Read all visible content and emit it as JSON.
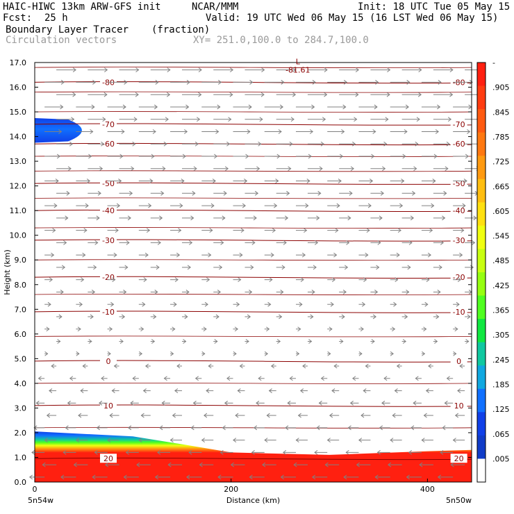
{
  "header": {
    "model": "HAIC-HIWC 13km ARW-GFS init",
    "org": "NCAR/MMM",
    "init": "Init: 18 UTC Tue 05 May 15",
    "fcst_label": "Fcst:",
    "fcst_value": "25 h",
    "valid": "Valid: 19 UTC Wed 06 May 15 (16 LST Wed 06 May 15)",
    "field1_name": "Boundary Layer Tracer",
    "field1_unit": "(fraction)",
    "field2_name": "Circulation vectors",
    "xy": "XY= 251.0,100.0 to 284.7,100.0"
  },
  "chart_data": {
    "type": "heatmap",
    "title": "Boundary Layer Tracer (fraction)",
    "xlabel": "Distance (km)",
    "ylabel": "Height (km)",
    "xlim": [
      0,
      445
    ],
    "ylim": [
      0.0,
      17.0
    ],
    "x_ticks": [
      "0",
      "200",
      "400"
    ],
    "x_tick_values": [
      0,
      200,
      400
    ],
    "x_end_labels": [
      "5n54w",
      "5n50w"
    ],
    "y_ticks": [
      "0.0",
      "1.0",
      "2.0",
      "3.0",
      "4.0",
      "5.0",
      "6.0",
      "7.0",
      "8.0",
      "9.0",
      "10.0",
      "11.0",
      "12.0",
      "13.0",
      "14.0",
      "15.0",
      "16.0",
      "17.0"
    ],
    "colorbar": {
      "labels": [
        "-",
        ".905",
        ".845",
        ".785",
        ".725",
        ".665",
        ".605",
        ".545",
        ".485",
        ".425",
        ".365",
        ".305",
        ".245",
        ".185",
        ".125",
        ".065",
        ".005"
      ],
      "colors": [
        "#ff2010",
        "#ff3c10",
        "#ff5a10",
        "#ff7810",
        "#ff9a10",
        "#ffbe10",
        "#ffe010",
        "#f0ff10",
        "#c8ff10",
        "#96ff10",
        "#50ff20",
        "#10e840",
        "#10c8a0",
        "#10a8e0",
        "#1070ff",
        "#1040e8",
        "#103cc8",
        "#ffffff"
      ]
    },
    "boundary_layer_top_km": [
      {
        "x": 0,
        "y": 2.05
      },
      {
        "x": 100,
        "y": 1.85
      },
      {
        "x": 155,
        "y": 1.5
      },
      {
        "x": 200,
        "y": 1.2
      },
      {
        "x": 300,
        "y": 1.1
      },
      {
        "x": 400,
        "y": 1.25
      },
      {
        "x": 445,
        "y": 1.3
      }
    ],
    "upper_plume": {
      "x_start": 0,
      "x_end": 62,
      "y_center": 14.25,
      "half_depth": 0.5
    },
    "isotherms": [
      {
        "label": "-80",
        "y": 16.2
      },
      {
        "label": "-70",
        "y": 14.5
      },
      {
        "label": "-60",
        "y": 13.7
      },
      {
        "label": "-50",
        "y": 12.1
      },
      {
        "label": "-40",
        "y": 11.0
      },
      {
        "label": "-30",
        "y": 9.8
      },
      {
        "label": "-20",
        "y": 8.3
      },
      {
        "label": "-10",
        "y": 6.9
      },
      {
        "label": "0",
        "y": 4.9
      },
      {
        "label": "10",
        "y": 3.1
      },
      {
        "label": "20",
        "y": 0.95
      }
    ],
    "low_marker": {
      "symbol": "L",
      "value": "-81.61",
      "x": 268,
      "y": 16.7
    },
    "vectors": {
      "direction_upper": "east",
      "direction_lower": "west",
      "reversal_height_km": 5.0
    }
  }
}
